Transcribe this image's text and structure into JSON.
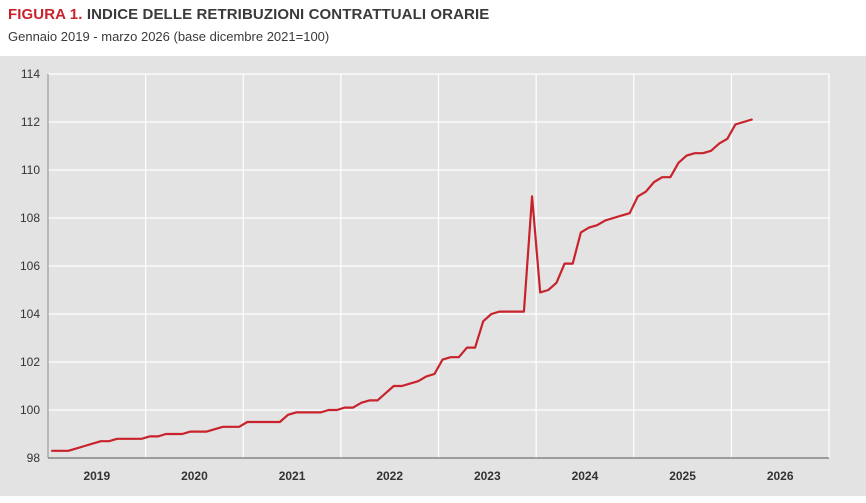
{
  "header": {
    "figure_label": "FIGURA 1.",
    "title": "INDICE DELLE RETRIBUZIONI CONTRATTUALI ORARIE",
    "subtitle": "Gennaio 2019 - marzo 2026 (base dicembre 2021=100)"
  },
  "colors": {
    "line": "#c8232c",
    "background": "#e3e3e3",
    "grid": "#ffffff",
    "figure_label": "#c8232c"
  },
  "chart_data": {
    "type": "line",
    "title": "INDICE DELLE RETRIBUZIONI CONTRATTUALI ORARIE",
    "subtitle": "Gennaio 2019 - marzo 2026 (base dicembre 2021=100)",
    "xlabel": "",
    "ylabel": "",
    "ylim": [
      98,
      114
    ],
    "yticks": [
      98,
      100,
      102,
      104,
      106,
      108,
      110,
      112,
      114
    ],
    "years": [
      "2019",
      "2020",
      "2021",
      "2022",
      "2023",
      "2024",
      "2025",
      "2026"
    ],
    "start": "2019-01",
    "end": "2026-03",
    "grid": true,
    "legend": "none",
    "series": [
      {
        "values": [
          98.3,
          98.3,
          98.3,
          98.4,
          98.5,
          98.6,
          98.7,
          98.7,
          98.8,
          98.8,
          98.8,
          98.8,
          98.9,
          98.9,
          99.0,
          99.0,
          99.0,
          99.1,
          99.1,
          99.1,
          99.2,
          99.3,
          99.3,
          99.3,
          99.5,
          99.5,
          99.5,
          99.5,
          99.5,
          99.8,
          99.9,
          99.9,
          99.9,
          99.9,
          100.0,
          100.0,
          100.1,
          100.1,
          100.3,
          100.4,
          100.4,
          100.7,
          101.0,
          101.0,
          101.1,
          101.2,
          101.4,
          101.5,
          102.1,
          102.2,
          102.2,
          102.6,
          102.6,
          103.7,
          104.0,
          104.1,
          104.1,
          104.1,
          104.1,
          108.9,
          104.9,
          105.0,
          105.3,
          106.1,
          106.1,
          107.4,
          107.6,
          107.7,
          107.9,
          108.0,
          108.1,
          108.2,
          108.9,
          109.1,
          109.5,
          109.7,
          109.7,
          110.3,
          110.6,
          110.7,
          110.7,
          110.8,
          111.1,
          111.3,
          111.9,
          112.0,
          112.1
        ]
      }
    ]
  }
}
